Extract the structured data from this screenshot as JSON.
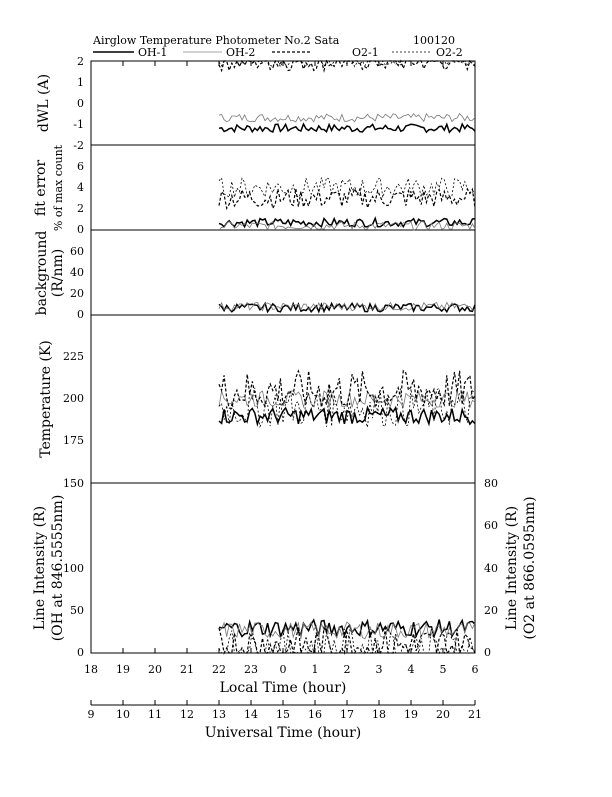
{
  "header": {
    "title": "Airglow Temperature Photometer No.2  Sata",
    "date_code": "100120"
  },
  "legend": [
    {
      "label": "OH-1",
      "color": "#000000",
      "style": "solid-thick"
    },
    {
      "label": "OH-2",
      "color": "#888888",
      "style": "solid-thin"
    },
    {
      "label": "O2-1",
      "color": "#000000",
      "style": "dashed-thick"
    },
    {
      "label": "O2-2",
      "color": "#000000",
      "style": "dashed-thin"
    }
  ],
  "axes": {
    "local_time_label": "Local Time (hour)",
    "universal_time_label": "Universal Time (hour)",
    "local_ticks": [
      "18",
      "19",
      "20",
      "21",
      "22",
      "23",
      "0",
      "1",
      "2",
      "3",
      "4",
      "5",
      "6"
    ],
    "universal_ticks": [
      "9",
      "10",
      "11",
      "12",
      "13",
      "14",
      "15",
      "16",
      "17",
      "18",
      "19",
      "20",
      "21"
    ]
  },
  "chart_data": [
    {
      "type": "line",
      "ylabel": "dWL (A)",
      "ylim": [
        -2,
        2
      ],
      "yticks": [
        "2",
        "1",
        "0",
        "-1",
        "-2"
      ],
      "x_universal_range": [
        13,
        21
      ],
      "series": [
        {
          "name": "OH-1",
          "approx_level": -1.2
        },
        {
          "name": "OH-2",
          "approx_level": -0.7
        },
        {
          "name": "O2-1",
          "approx_level": 2.0
        },
        {
          "name": "O2-2",
          "approx_level": 2.2
        }
      ]
    },
    {
      "type": "line",
      "ylabel": "fit error",
      "ylabel2": "% of max count",
      "ylim": [
        0,
        8
      ],
      "yticks": [
        "6",
        "4",
        "2",
        "0"
      ],
      "x_universal_range": [
        13,
        21
      ],
      "series": [
        {
          "name": "OH-1",
          "approx_level": 0.7
        },
        {
          "name": "OH-2",
          "approx_level": 0.4
        },
        {
          "name": "O2-1",
          "approx_level": 3.0
        },
        {
          "name": "O2-2",
          "approx_level": 4.0
        }
      ]
    },
    {
      "type": "line",
      "ylabel": "background",
      "ylabel2": "(R/nm)",
      "ylim": [
        0,
        80
      ],
      "yticks": [
        "60",
        "40",
        "20",
        "0"
      ],
      "x_universal_range": [
        13,
        21
      ],
      "series": [
        {
          "name": "OH-1",
          "approx_level": 7
        },
        {
          "name": "OH-2",
          "approx_level": 8
        }
      ]
    },
    {
      "type": "line",
      "ylabel": "Temperature (K)",
      "ylim": [
        150,
        250
      ],
      "yticks": [
        "225",
        "200",
        "175"
      ],
      "x_universal_range": [
        13,
        21
      ],
      "series": [
        {
          "name": "OH-1",
          "approx_level": 190
        },
        {
          "name": "OH-2",
          "approx_level": 200
        },
        {
          "name": "O2-1",
          "approx_level": 205
        },
        {
          "name": "O2-2",
          "approx_level": 195
        }
      ]
    },
    {
      "type": "line",
      "ylabel": "Line Intensity (R)",
      "ylabel2": "(OH at 846.5555nm)",
      "ylim": [
        0,
        150
      ],
      "yticks": [
        "150",
        "100",
        "50",
        "0"
      ],
      "ylabel_right": "Line Intensity (R)",
      "ylabel_right2": "(O2 at 866.0595nm)",
      "ylim_right": [
        0,
        80
      ],
      "yticks_right": [
        "80",
        "60",
        "40",
        "20",
        "0"
      ],
      "x_universal_range": [
        13,
        21
      ],
      "series": [
        {
          "name": "OH-1",
          "approx_level": 22
        },
        {
          "name": "OH-2",
          "approx_level": 20
        },
        {
          "name": "O2-1",
          "approx_level": 3
        },
        {
          "name": "O2-2",
          "approx_level": 2
        }
      ]
    }
  ]
}
